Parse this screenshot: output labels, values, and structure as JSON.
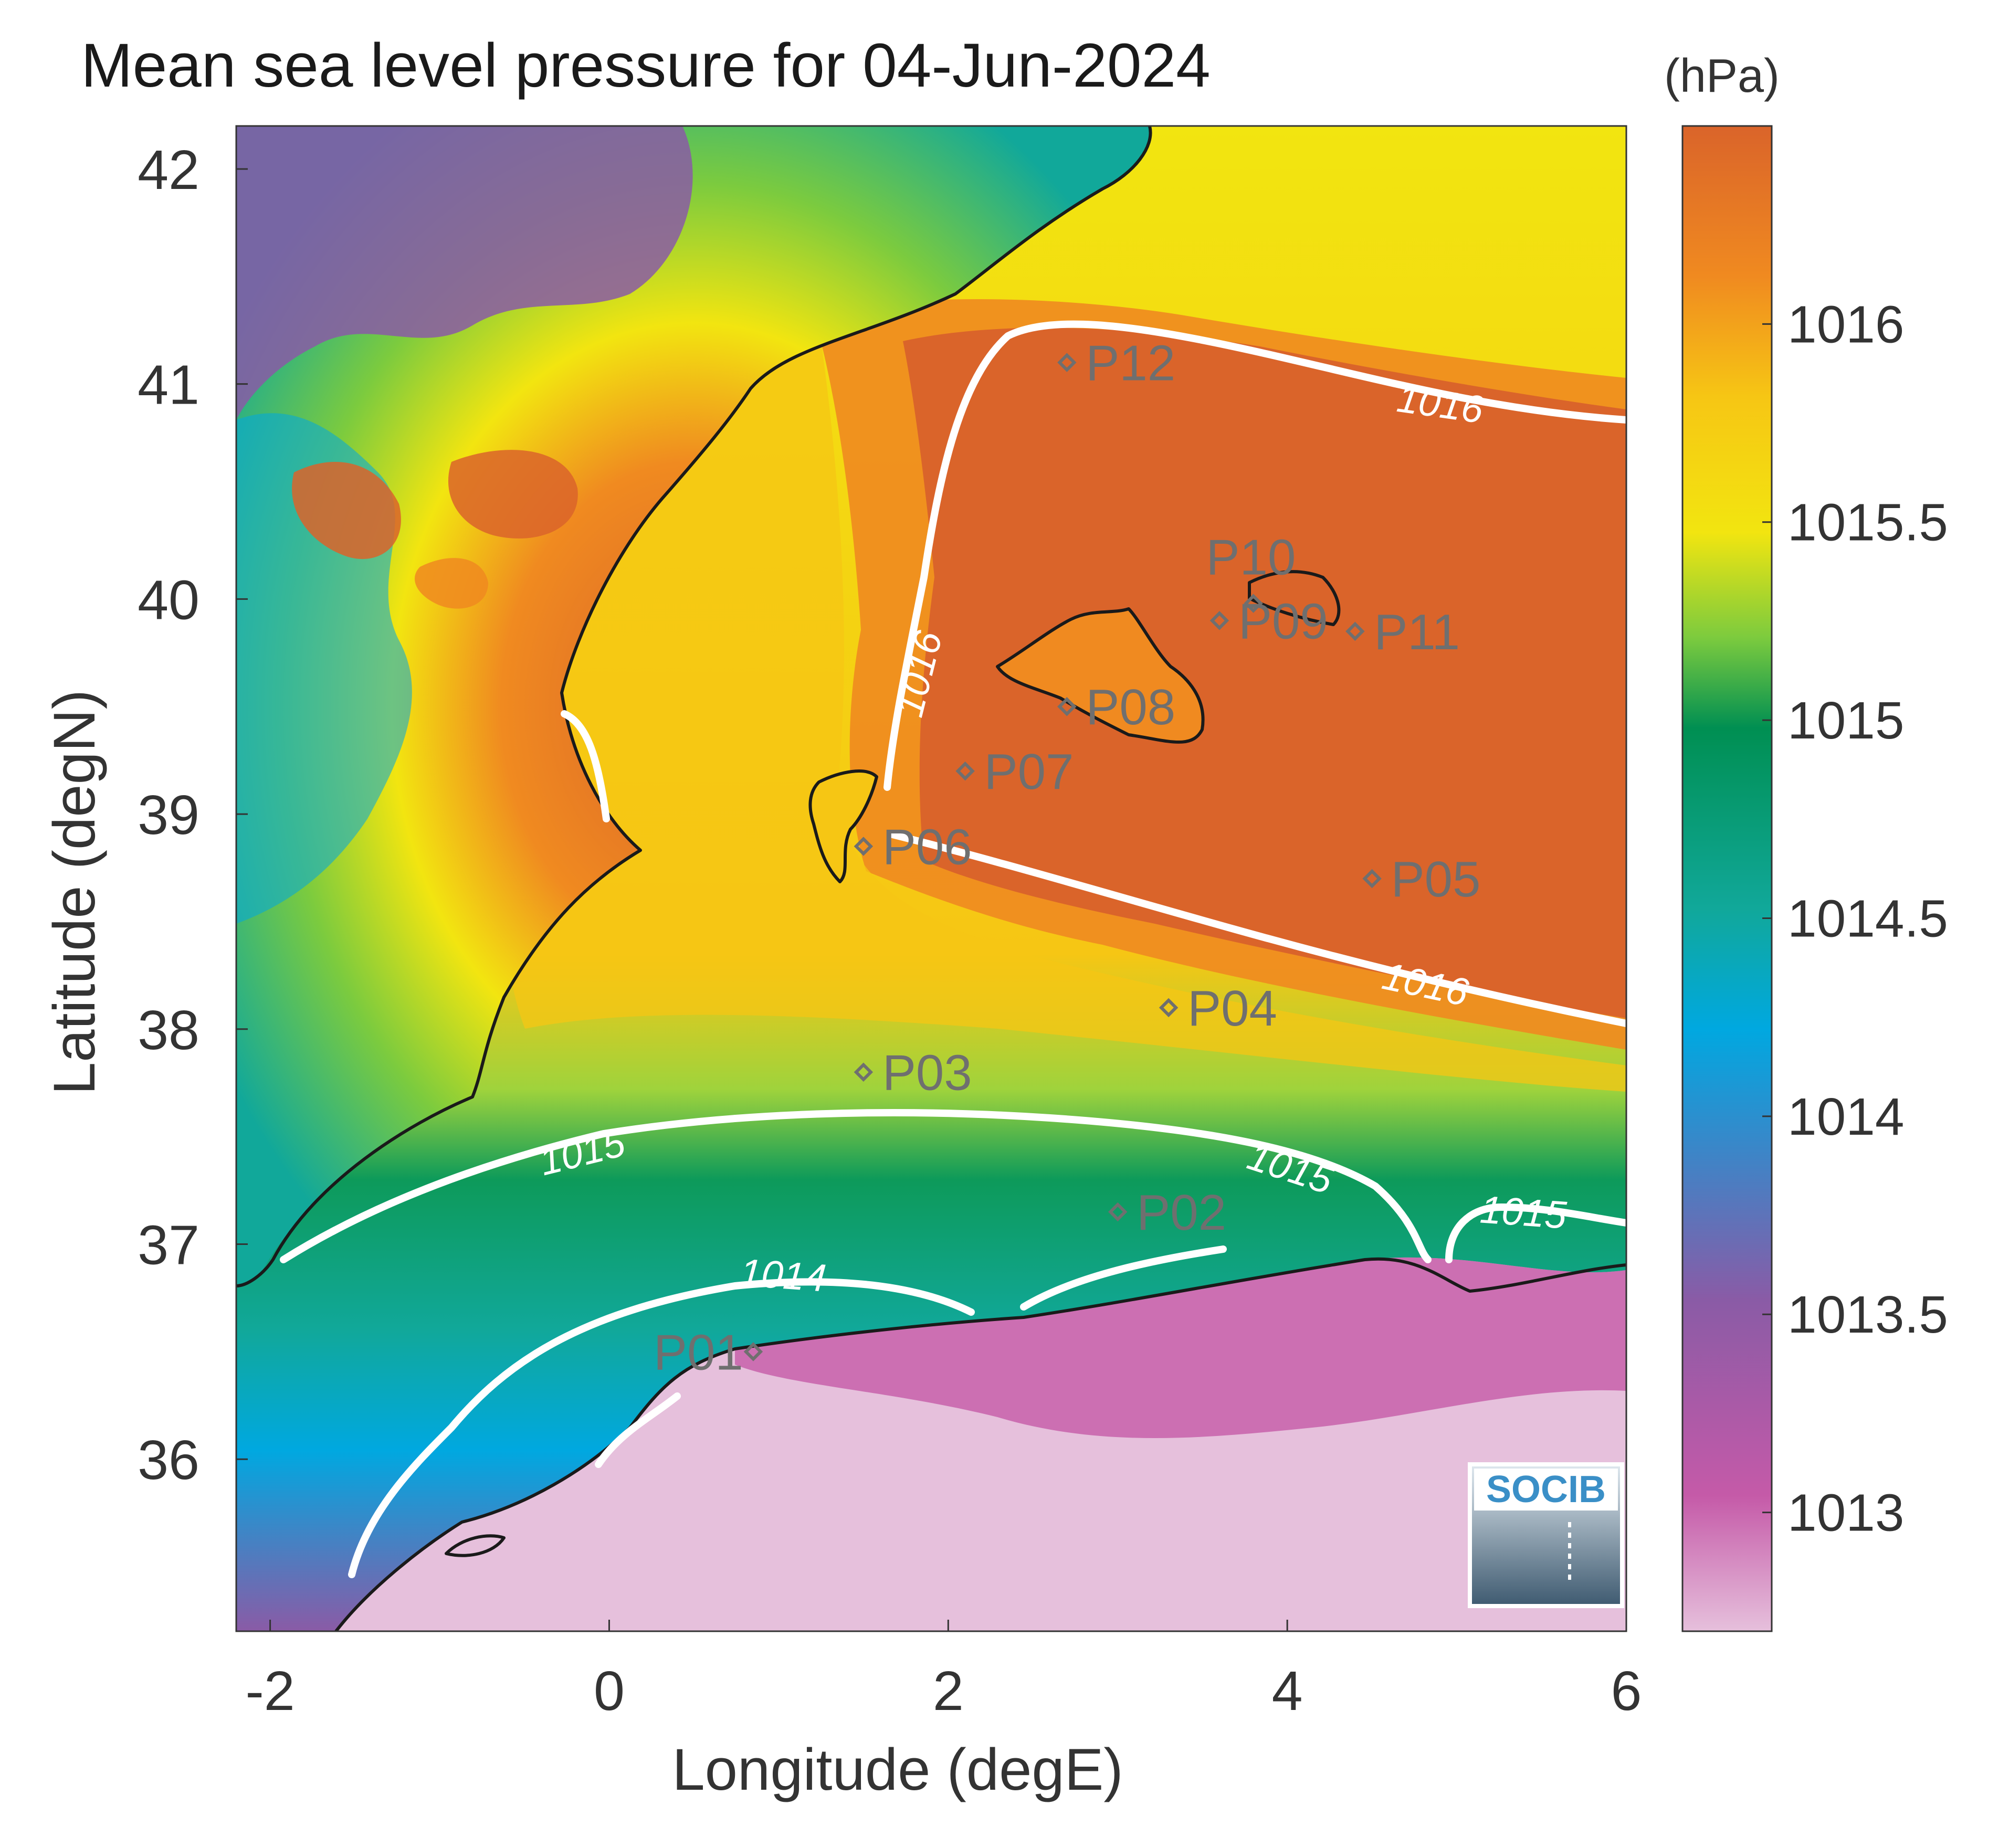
{
  "title": "Mean sea level pressure for 04-Jun-2024",
  "x_axis": {
    "label": "Longitude (degE)",
    "ticks": [
      {
        "label": "-2",
        "value": -2
      },
      {
        "label": "0",
        "value": 0
      },
      {
        "label": "2",
        "value": 2
      },
      {
        "label": "4",
        "value": 4
      },
      {
        "label": "6",
        "value": 6
      }
    ],
    "range": [
      -2.2,
      6.0
    ]
  },
  "y_axis": {
    "label": "Latitude (degN)",
    "ticks": [
      {
        "label": "36",
        "value": 36
      },
      {
        "label": "37",
        "value": 37
      },
      {
        "label": "38",
        "value": 38
      },
      {
        "label": "39",
        "value": 39
      },
      {
        "label": "40",
        "value": 40
      },
      {
        "label": "41",
        "value": 41
      },
      {
        "label": "42",
        "value": 42
      }
    ],
    "range": [
      35.2,
      42.2
    ]
  },
  "colorbar": {
    "unit": "(hPa)",
    "range": [
      1012.7,
      1016.5
    ],
    "ticks": [
      {
        "label": "1013",
        "value": 1013
      },
      {
        "label": "1013.5",
        "value": 1013.5
      },
      {
        "label": "1014",
        "value": 1014
      },
      {
        "label": "1014.5",
        "value": 1014.5
      },
      {
        "label": "1015",
        "value": 1015
      },
      {
        "label": "1015.5",
        "value": 1015.5
      },
      {
        "label": "1016",
        "value": 1016
      }
    ],
    "colors": [
      "#e6c0dc",
      "#c55aa8",
      "#8a5ba6",
      "#3b86c8",
      "#00a8e0",
      "#11a89a",
      "#008f52",
      "#7ccb3e",
      "#f2e510",
      "#f6c614",
      "#f08a20",
      "#da642a"
    ]
  },
  "contour_labels": {
    "c1016a": "1016",
    "c1016b": "1016",
    "c1016c": "1016",
    "c1015a": "1015",
    "c1015b": "1015",
    "c1015c": "1015",
    "c1014": "1014"
  },
  "points": [
    {
      "id": "P01",
      "lon": 0.85,
      "lat": 36.5
    },
    {
      "id": "P02",
      "lon": 3.0,
      "lat": 37.15
    },
    {
      "id": "P03",
      "lon": 1.5,
      "lat": 37.8
    },
    {
      "id": "P04",
      "lon": 3.3,
      "lat": 38.1
    },
    {
      "id": "P05",
      "lon": 4.5,
      "lat": 38.7
    },
    {
      "id": "P06",
      "lon": 1.5,
      "lat": 38.85
    },
    {
      "id": "P07",
      "lon": 2.1,
      "lat": 39.2
    },
    {
      "id": "P08",
      "lon": 2.7,
      "lat": 39.5
    },
    {
      "id": "P09",
      "lon": 3.6,
      "lat": 39.9
    },
    {
      "id": "P10",
      "lon": 3.8,
      "lat": 39.98
    },
    {
      "id": "P11",
      "lon": 4.4,
      "lat": 39.85
    },
    {
      "id": "P12",
      "lon": 2.7,
      "lat": 41.1
    }
  ],
  "logo": {
    "text": "SOCIB"
  }
}
